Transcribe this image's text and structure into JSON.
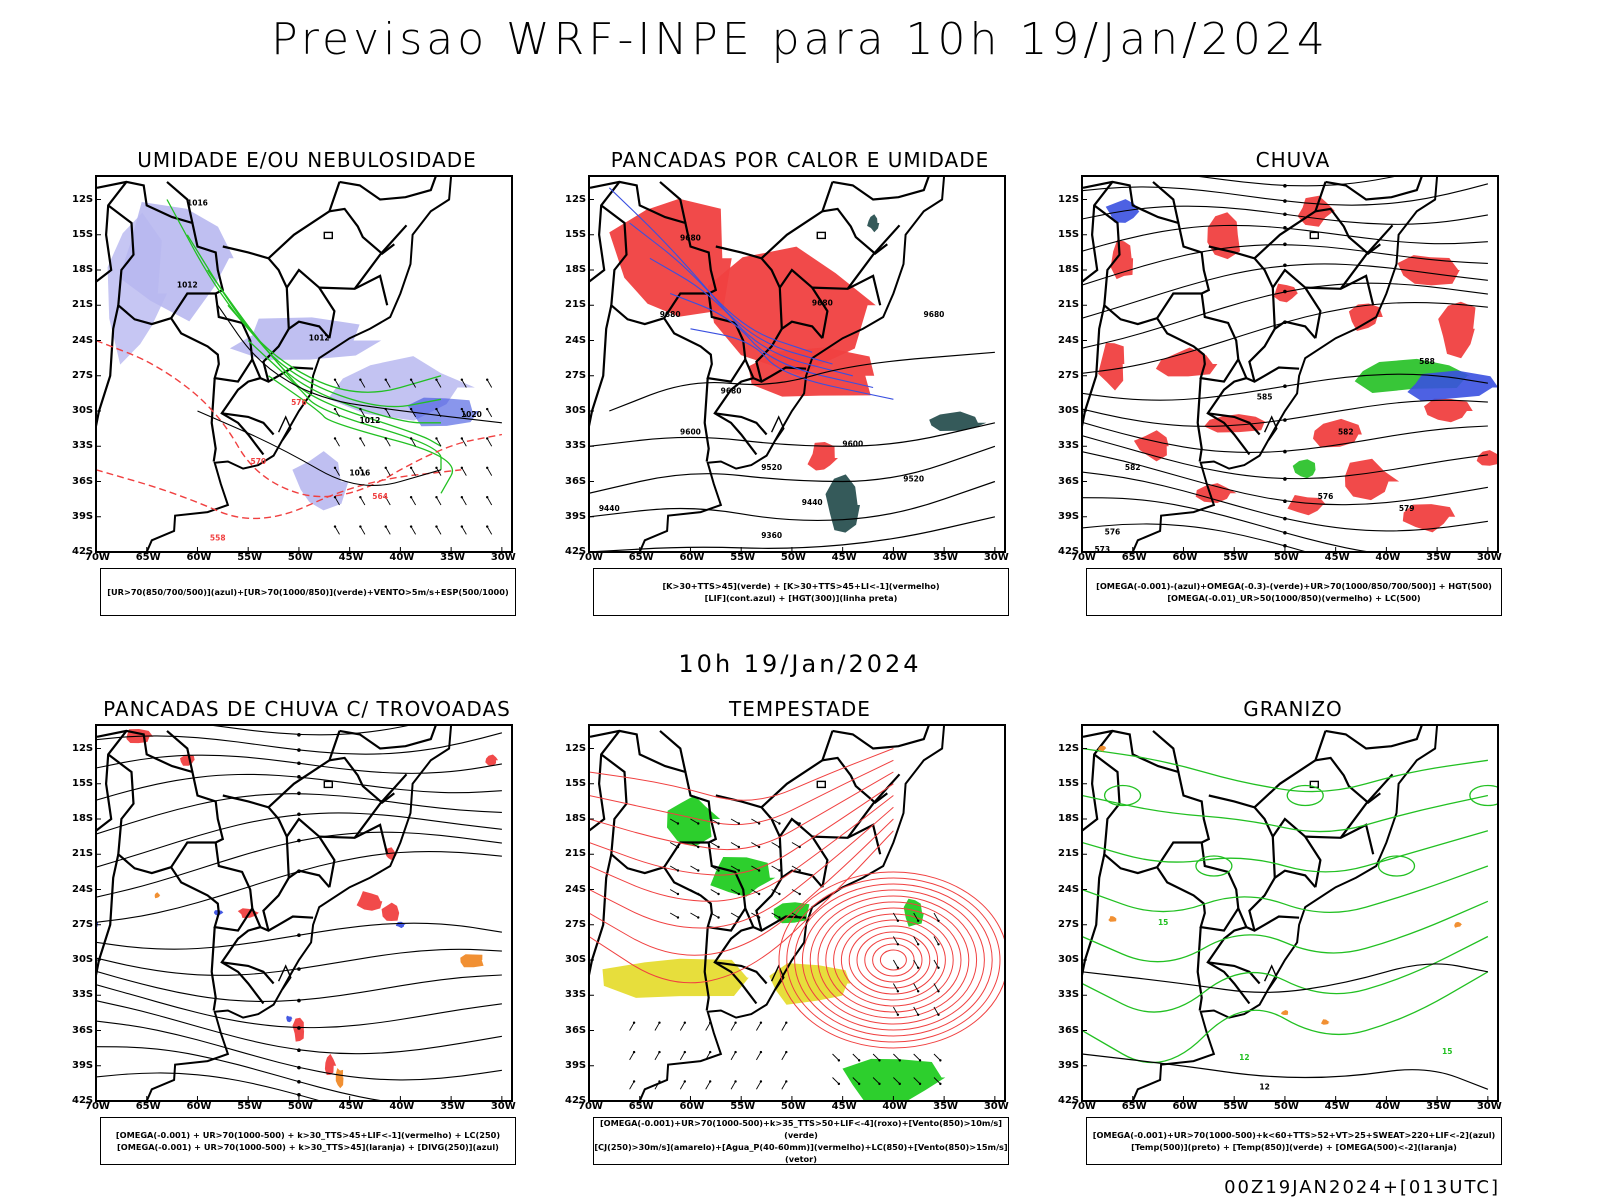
{
  "main_title": "Previsao WRF-INPE  para 10h 19/Jan/2024",
  "mid_title": "10h 19/Jan/2024",
  "footer": "00Z19JAN2024+[013UTC]",
  "lat_labels": [
    "12S",
    "15S",
    "18S",
    "21S",
    "24S",
    "27S",
    "30S",
    "33S",
    "36S",
    "39S",
    "42S"
  ],
  "lon_labels": [
    "70W",
    "65W",
    "60W",
    "55W",
    "50W",
    "45W",
    "40W",
    "35W",
    "30W"
  ],
  "colors": {
    "red": "#f04040",
    "blue": "#3a50e0",
    "green": "#22c022",
    "lightgreen": "#22cc22",
    "lavender": "#b8b8f0",
    "yellow": "#e6dc32",
    "orange": "#f08a28",
    "darkteal": "#1f4848",
    "black": "#000000"
  },
  "panels": [
    {
      "title": "UMIDADE E/OU NEBULOSIDADE",
      "legend": [
        "[UR>70(850/700/500)](azul)+[UR>70(1000/850)](verde)+VENTO>5m/s+ESP(500/1000)"
      ],
      "contour_labels": [
        "1016",
        "1012",
        "1020",
        "576",
        "570",
        "564",
        "558"
      ]
    },
    {
      "title": "PANCADAS POR CALOR E UMIDADE",
      "legend": [
        "[K>30+TTS>45](verde) + [K>30+TTS>45+LI<-1](vermelho)",
        "[LIF](cont.azul) + [HGT(300)](linha preta)"
      ],
      "contour_labels": [
        "9680",
        "9600",
        "9520",
        "9440",
        "9360"
      ]
    },
    {
      "title": "CHUVA",
      "legend": [
        "[OMEGA(-0.001)-(azul)+OMEGA(-0.3)-(verde)+UR>70(1000/850/700/500)] + HGT(500)",
        "[OMEGA(-0.01)_UR>50(1000/850)(vermelho) + LC(500)"
      ],
      "contour_labels": [
        "588",
        "585",
        "582",
        "579",
        "576",
        "573"
      ]
    },
    {
      "title": "PANCADAS DE CHUVA C/ TROVOADAS",
      "legend": [
        "[OMEGA(-0.001) + UR>70(1000-500) + k>30_TTS>45+LIF<-1](vermelho) + LC(250)",
        "[OMEGA(-0.001) + UR>70(1000-500) + k>30_TTS>45](laranja) + [DIVG(250)](azul)"
      ],
      "contour_labels": []
    },
    {
      "title": "TEMPESTADE",
      "legend": [
        "[OMEGA(-0.001)+UR>70(1000-500)+k>35_TTS>50+LIF<-4](roxo)+[Vento(850)>10m/s](verde)",
        "[CJ(250)>30m/s](amarelo)+[Agua_P(40-60mm)](vermelho)+LC(850)+[Vento(850)>15m/s](vetor)"
      ],
      "contour_labels": []
    },
    {
      "title": "GRANIZO",
      "legend": [
        "[OMEGA(-0.001)+UR>70(1000-500)+k<60+TTS>52+VT>25+SWEAT>220+LIF<-2](azul)",
        "[Temp(500)](preto) + [Temp(850)](verde) + [OMEGA(500)<-2](laranja)"
      ],
      "contour_labels": [
        "12",
        "15"
      ]
    }
  ]
}
